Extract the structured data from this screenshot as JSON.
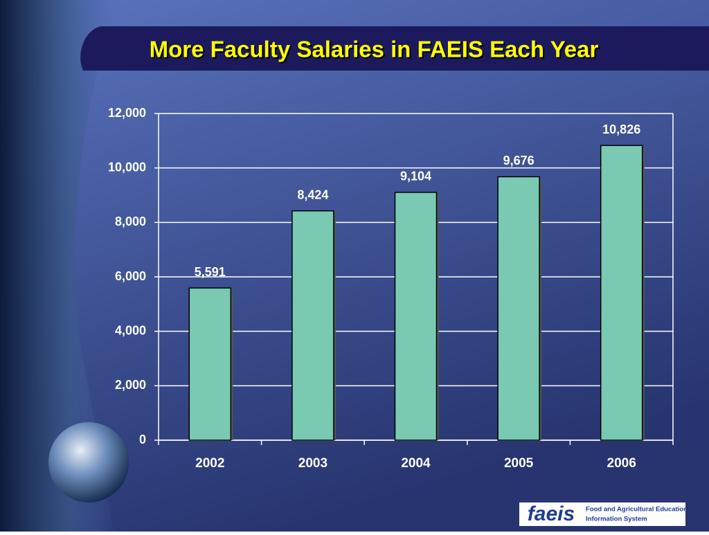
{
  "chart_data": {
    "type": "bar",
    "title": "More Faculty Salaries in FAEIS Each Year",
    "categories": [
      "2002",
      "2003",
      "2004",
      "2005",
      "2006"
    ],
    "values": [
      5591,
      8424,
      9104,
      9676,
      10826
    ],
    "value_labels": [
      "5,591",
      "8,424",
      "9,104",
      "9,676",
      "10,826"
    ],
    "color": "#79c9b3",
    "ylim": [
      0,
      12000
    ],
    "yticks": [
      0,
      {
        "value": 2000,
        "label": "2,000"
      },
      {
        "value": 4000,
        "label": "4,000"
      },
      {
        "value": 6000,
        "label": "6,000"
      },
      {
        "value": 8000,
        "label": "8,000"
      },
      {
        "value": 10000,
        "label": "10,000"
      },
      {
        "value": 12000,
        "label": "12,000"
      }
    ],
    "grid": true
  },
  "logo": {
    "mark": "faeis",
    "lines": [
      "Food and Agricultural Education",
      "Information System"
    ]
  }
}
